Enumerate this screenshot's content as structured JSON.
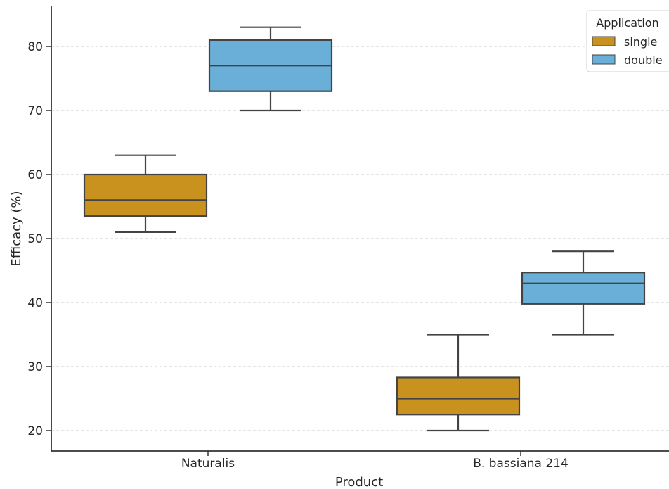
{
  "chart_data": {
    "type": "box",
    "xlabel": "Product",
    "ylabel": "Efficacy (%)",
    "categories": [
      "Naturalis",
      "B. bassiana 214"
    ],
    "ylim": [
      17.5,
      85.5
    ],
    "yticks": [
      20,
      30,
      40,
      50,
      60,
      70,
      80
    ],
    "grid": "horizontal dashed",
    "legend": {
      "title": "Application",
      "placement": "top-right",
      "entries": [
        "single",
        "double"
      ]
    },
    "series": [
      {
        "name": "single",
        "color": "#c9921f",
        "boxes": [
          {
            "category": "Naturalis",
            "whisker_low": 51,
            "q1": 53.5,
            "median": 56,
            "q3": 60,
            "whisker_high": 63
          },
          {
            "category": "B. bassiana 214",
            "whisker_low": 20,
            "q1": 22.5,
            "median": 25,
            "q3": 28.3,
            "whisker_high": 35
          }
        ]
      },
      {
        "name": "double",
        "color": "#6aafd8",
        "boxes": [
          {
            "category": "Naturalis",
            "whisker_low": 70,
            "q1": 73,
            "median": 77,
            "q3": 81,
            "whisker_high": 83
          },
          {
            "category": "B. bassiana 214",
            "whisker_low": 35,
            "q1": 39.8,
            "median": 43,
            "q3": 44.7,
            "whisker_high": 48
          }
        ]
      }
    ]
  }
}
